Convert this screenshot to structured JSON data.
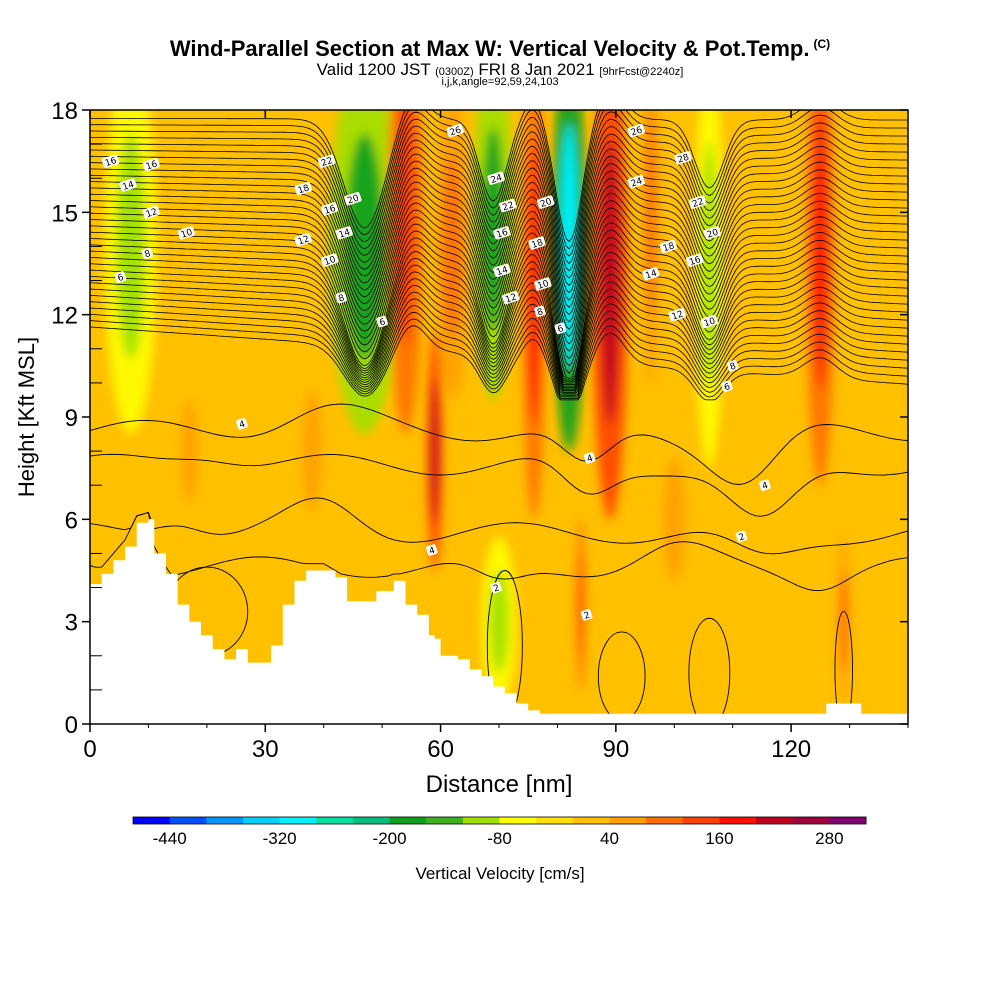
{
  "header": {
    "title": "Wind-Parallel Section at Max W: Vertical Velocity & Pot.Temp.",
    "title_tag": "(C)",
    "subtitle_a": "Valid 1200 JST",
    "subtitle_b": "(0300Z)",
    "subtitle_c": "FRI 8 Jan 2021",
    "subtitle_d": "[9hrFcst@2240z]",
    "subtitle2": "i,j,k,angle=92,59,24,103"
  },
  "chart_data": {
    "type": "heatmap",
    "xlabel": "Distance [nm]",
    "ylabel": "Height [Kft MSL]",
    "xlim": [
      0,
      140
    ],
    "ylim": [
      0,
      18
    ],
    "xticks": [
      0,
      30,
      60,
      90,
      120
    ],
    "yticks": [
      0,
      3,
      6,
      9,
      12,
      15,
      18
    ],
    "colorbar": {
      "label": "Vertical Velocity [cm/s]",
      "ticks": [
        -440,
        -320,
        -200,
        -80,
        40,
        160,
        280
      ],
      "range": [
        -480,
        320
      ],
      "step": 40,
      "colors": [
        "#0000ff",
        "#0050ff",
        "#0096ff",
        "#00d0ff",
        "#00f0ff",
        "#00e0a0",
        "#00c080",
        "#10a020",
        "#40b020",
        "#a0e000",
        "#ffff00",
        "#ffe000",
        "#ffc000",
        "#ffa000",
        "#ff7000",
        "#ff4000",
        "#ff1000",
        "#c00020",
        "#a00040",
        "#800070"
      ]
    },
    "terrain": [
      [
        0,
        4.1
      ],
      [
        2,
        4.4
      ],
      [
        4,
        4.8
      ],
      [
        6,
        5.2
      ],
      [
        8,
        5.9
      ],
      [
        10,
        6.0
      ],
      [
        11,
        5.0
      ],
      [
        13,
        4.4
      ],
      [
        15,
        3.5
      ],
      [
        17,
        3.0
      ],
      [
        19,
        2.6
      ],
      [
        21,
        2.2
      ],
      [
        23,
        1.9
      ],
      [
        25,
        2.2
      ],
      [
        27,
        1.8
      ],
      [
        29,
        1.8
      ],
      [
        31,
        2.3
      ],
      [
        33,
        3.5
      ],
      [
        35,
        4.2
      ],
      [
        37,
        4.5
      ],
      [
        40,
        4.5
      ],
      [
        42,
        4.3
      ],
      [
        44,
        3.6
      ],
      [
        47,
        3.6
      ],
      [
        49,
        3.9
      ],
      [
        52,
        4.2
      ],
      [
        54,
        3.5
      ],
      [
        56,
        3.2
      ],
      [
        58,
        2.6
      ],
      [
        59,
        2.5
      ],
      [
        60,
        2.0
      ],
      [
        63,
        1.9
      ],
      [
        65,
        1.6
      ],
      [
        67,
        1.4
      ],
      [
        69,
        1.1
      ],
      [
        71,
        0.9
      ],
      [
        73,
        0.6
      ],
      [
        75,
        0.4
      ],
      [
        77,
        0.3
      ],
      [
        79,
        0.3
      ],
      [
        100,
        0.3
      ],
      [
        125,
        0.3
      ],
      [
        126,
        0.6
      ],
      [
        131,
        0.6
      ],
      [
        132,
        0.3
      ],
      [
        140,
        0.3
      ]
    ],
    "w_features": [
      {
        "x": 7,
        "z": 14,
        "w": 9,
        "h": 11,
        "value": -90
      },
      {
        "x": 47,
        "z": 14,
        "w": 12,
        "h": 11,
        "value": -170
      },
      {
        "x": 54,
        "z": 15,
        "w": 6,
        "h": 13,
        "value": 150
      },
      {
        "x": 59,
        "z": 8,
        "w": 2.6,
        "h": 7,
        "value": 200
      },
      {
        "x": 62,
        "z": 14,
        "w": 6,
        "h": 9,
        "value": 90
      },
      {
        "x": 69,
        "z": 14.5,
        "w": 7,
        "h": 10,
        "value": -180
      },
      {
        "x": 76,
        "z": 13,
        "w": 4,
        "h": 14,
        "value": 190
      },
      {
        "x": 82,
        "z": 14,
        "w": 6,
        "h": 12,
        "value": -300
      },
      {
        "x": 89,
        "z": 13,
        "w": 6,
        "h": 14,
        "value": 200
      },
      {
        "x": 96,
        "z": 15,
        "w": 3,
        "h": 10,
        "value": 80
      },
      {
        "x": 106,
        "z": 13.5,
        "w": 5,
        "h": 12,
        "value": -110
      },
      {
        "x": 125,
        "z": 14,
        "w": 5,
        "h": 14,
        "value": 180
      },
      {
        "x": 84,
        "z": 3.5,
        "w": 1.4,
        "h": 5,
        "value": 150
      },
      {
        "x": 129,
        "z": 3,
        "w": 1.8,
        "h": 5,
        "value": 130
      },
      {
        "x": 70,
        "z": 3,
        "w": 6,
        "h": 5,
        "value": -100
      },
      {
        "x": 17,
        "z": 8,
        "w": 5,
        "h": 5,
        "value": 45
      },
      {
        "x": 38,
        "z": 8,
        "w": 6,
        "h": 6,
        "value": 45
      },
      {
        "x": 100,
        "z": 6,
        "w": 7,
        "h": 6,
        "value": 45
      }
    ],
    "contour_labels": [
      {
        "text": "16",
        "x": 3.5,
        "z": 16.5
      },
      {
        "text": "16",
        "x": 10.5,
        "z": 16.4
      },
      {
        "text": "14",
        "x": 6.5,
        "z": 15.8
      },
      {
        "text": "12",
        "x": 10.5,
        "z": 15.0
      },
      {
        "text": "10",
        "x": 16.5,
        "z": 14.4
      },
      {
        "text": "8",
        "x": 9.8,
        "z": 13.8
      },
      {
        "text": "6",
        "x": 5.2,
        "z": 13.1
      },
      {
        "text": "22",
        "x": 40.5,
        "z": 16.5
      },
      {
        "text": "18",
        "x": 36.5,
        "z": 15.7
      },
      {
        "text": "20",
        "x": 45,
        "z": 15.4
      },
      {
        "text": "16",
        "x": 41,
        "z": 15.1
      },
      {
        "text": "14",
        "x": 43.5,
        "z": 14.4
      },
      {
        "text": "12",
        "x": 36.5,
        "z": 14.2
      },
      {
        "text": "10",
        "x": 41,
        "z": 13.6
      },
      {
        "text": "8",
        "x": 43,
        "z": 12.5
      },
      {
        "text": "6",
        "x": 50,
        "z": 11.8
      },
      {
        "text": "26",
        "x": 62.5,
        "z": 17.4
      },
      {
        "text": "24",
        "x": 69.5,
        "z": 16.0
      },
      {
        "text": "22",
        "x": 71.5,
        "z": 15.2
      },
      {
        "text": "20",
        "x": 78,
        "z": 15.3
      },
      {
        "text": "16",
        "x": 70.5,
        "z": 14.4
      },
      {
        "text": "18",
        "x": 76.5,
        "z": 14.1
      },
      {
        "text": "14",
        "x": 70.5,
        "z": 13.3
      },
      {
        "text": "12",
        "x": 72,
        "z": 12.5
      },
      {
        "text": "10",
        "x": 77.5,
        "z": 12.9
      },
      {
        "text": "8",
        "x": 77,
        "z": 12.1
      },
      {
        "text": "6",
        "x": 80.5,
        "z": 11.6
      },
      {
        "text": "26",
        "x": 93.5,
        "z": 17.4
      },
      {
        "text": "28",
        "x": 101.5,
        "z": 16.6
      },
      {
        "text": "24",
        "x": 93.5,
        "z": 15.9
      },
      {
        "text": "22",
        "x": 104,
        "z": 15.3
      },
      {
        "text": "20",
        "x": 106.5,
        "z": 14.4
      },
      {
        "text": "18",
        "x": 99,
        "z": 14.0
      },
      {
        "text": "16",
        "x": 103.5,
        "z": 13.6
      },
      {
        "text": "14",
        "x": 96,
        "z": 13.2
      },
      {
        "text": "12",
        "x": 100.5,
        "z": 12.0
      },
      {
        "text": "10",
        "x": 106,
        "z": 11.8
      },
      {
        "text": "8",
        "x": 110,
        "z": 10.5
      },
      {
        "text": "6",
        "x": 109,
        "z": 9.9
      },
      {
        "text": "4",
        "x": 26,
        "z": 8.8
      },
      {
        "text": "4",
        "x": 85.5,
        "z": 7.8
      },
      {
        "text": "4",
        "x": 115.5,
        "z": 7.0
      },
      {
        "text": "2",
        "x": 111.5,
        "z": 5.5
      },
      {
        "text": "4",
        "x": 58.5,
        "z": 5.1
      },
      {
        "text": "2",
        "x": 69.5,
        "z": 4.0
      },
      {
        "text": "2",
        "x": 85,
        "z": 3.2
      }
    ],
    "theta_profile": {
      "levels_upper": [
        6,
        8,
        10,
        12,
        14,
        16,
        18,
        20,
        22,
        24,
        26,
        28
      ],
      "levels_lower": [
        0,
        2,
        4
      ]
    }
  }
}
